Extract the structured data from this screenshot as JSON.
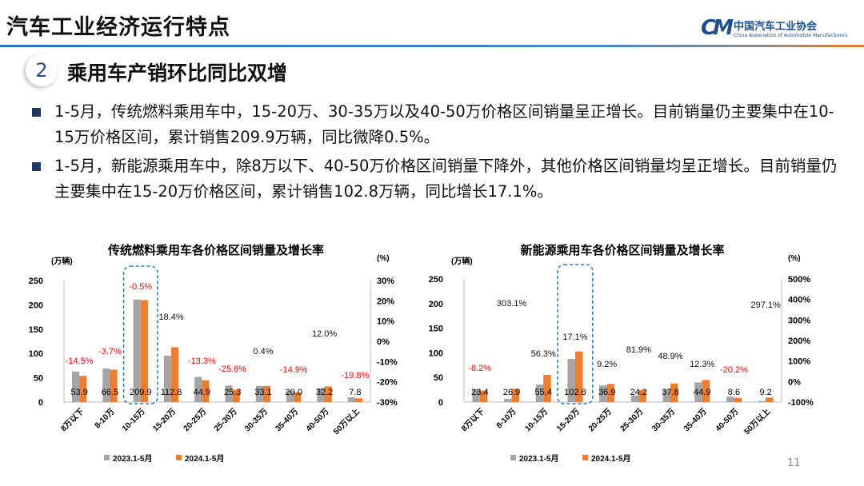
{
  "header": {
    "title": "汽车工业经济运行特点",
    "logo_cn": "中国汽车工业协会",
    "logo_en": "China Association of Automobile Manufacturers",
    "logo_mark": "CM"
  },
  "section": {
    "number": "2",
    "title": "乘用车产销环比同比双增"
  },
  "bullets": [
    "1-5月，传统燃料乘用车中，15-20万、30-35万以及40-50万价格区间销量呈正增长。目前销量仍主要集中在10-15万价格区间，累计销售209.9万辆，同比微降0.5%。",
    "1-5月，新能源乘用车中，除8万以下、40-50万价格区间销量下降外，其他价格区间销量均呈正增长。目前销量仍主要集中在15-20万价格区间，累计销售102.8万辆，同比增长17.1%。"
  ],
  "page_number": "11",
  "colors": {
    "series_2023": "#a5a5a5",
    "series_2024": "#ed7d31",
    "negative": "#ff0000",
    "highlight": "#2e75b6",
    "bullet": "#1f3864"
  },
  "chart_data": [
    {
      "type": "bar",
      "title": "传统燃料乘用车各价格区间销量及增长率",
      "ylabel": "(万辆)",
      "y2label": "(%)",
      "ylim": [
        0,
        250
      ],
      "yticks": [
        0,
        50,
        100,
        150,
        200,
        250
      ],
      "y2lim": [
        -30,
        30
      ],
      "y2ticks": [
        "-30%",
        "-20%",
        "-10%",
        "0%",
        "10%",
        "20%",
        "30%"
      ],
      "categories": [
        "8万以下",
        "8-10万",
        "10-15万",
        "15-20万",
        "20-25万",
        "25-30万",
        "30-35万",
        "35-40万",
        "40-50万",
        "50万以上"
      ],
      "series": [
        {
          "name": "2023.1-5月",
          "values": [
            63.0,
            69.1,
            211.0,
            95.3,
            51.8,
            34.0,
            33.0,
            23.5,
            28.8,
            9.7
          ]
        },
        {
          "name": "2024.1-5月",
          "values": [
            53.9,
            66.5,
            209.9,
            112.8,
            44.9,
            25.3,
            33.1,
            20.0,
            32.2,
            7.8
          ]
        }
      ],
      "value_labels": [
        "53.9",
        "66.5",
        "209.9",
        "112.8",
        "44.9",
        "25.3",
        "33.1",
        "20.0",
        "32.2",
        "7.8"
      ],
      "growth": [
        -14.5,
        -3.7,
        -0.5,
        18.4,
        -13.3,
        -25.6,
        0.4,
        -14.9,
        12.0,
        -19.8
      ],
      "growth_labels": [
        "-14.5%",
        "-3.7%",
        "-0.5%",
        "18.4%",
        "-13.3%",
        "-25.6%",
        "0.4%",
        "-14.9%",
        "12.0%",
        "-19.8%"
      ],
      "highlight_category": "10-15万",
      "legend": "bottom"
    },
    {
      "type": "bar",
      "title": "新能源乘用车各价格区间销量及增长率",
      "ylabel": "(万辆)",
      "y2label": "(%)",
      "ylim": [
        0,
        250
      ],
      "yticks": [
        0,
        50,
        100,
        150,
        200,
        250
      ],
      "y2lim": [
        -100,
        500
      ],
      "y2ticks": [
        "-100%",
        "0%",
        "100%",
        "200%",
        "300%",
        "400%",
        "500%"
      ],
      "categories": [
        "8万以下",
        "8-10万",
        "10-15万",
        "15-20万",
        "20-25万",
        "25-30万",
        "30-35万",
        "35-40万",
        "40-50万",
        "50万以上"
      ],
      "series": [
        {
          "name": "2023.1-5月",
          "values": [
            25.5,
            6.7,
            35.4,
            87.8,
            33.8,
            13.3,
            25.4,
            40.0,
            10.8,
            2.3
          ]
        },
        {
          "name": "2024.1-5月",
          "values": [
            23.4,
            26.9,
            55.4,
            102.8,
            36.9,
            24.2,
            37.8,
            44.9,
            8.6,
            9.2
          ]
        }
      ],
      "value_labels": [
        "23.4",
        "26.9",
        "55.4",
        "102.8",
        "36.9",
        "24.2",
        "37.8",
        "44.9",
        "8.6",
        "9.2"
      ],
      "growth": [
        -8.2,
        303.1,
        56.3,
        17.1,
        9.2,
        81.9,
        48.9,
        12.3,
        -20.2,
        297.1
      ],
      "growth_labels": [
        "-8.2%",
        "303.1%",
        "56.3%",
        "17.1%",
        "9.2%",
        "81.9%",
        "48.9%",
        "12.3%",
        "-20.2%",
        "297.1%"
      ],
      "highlight_category": "15-20万",
      "legend": "bottom"
    }
  ]
}
